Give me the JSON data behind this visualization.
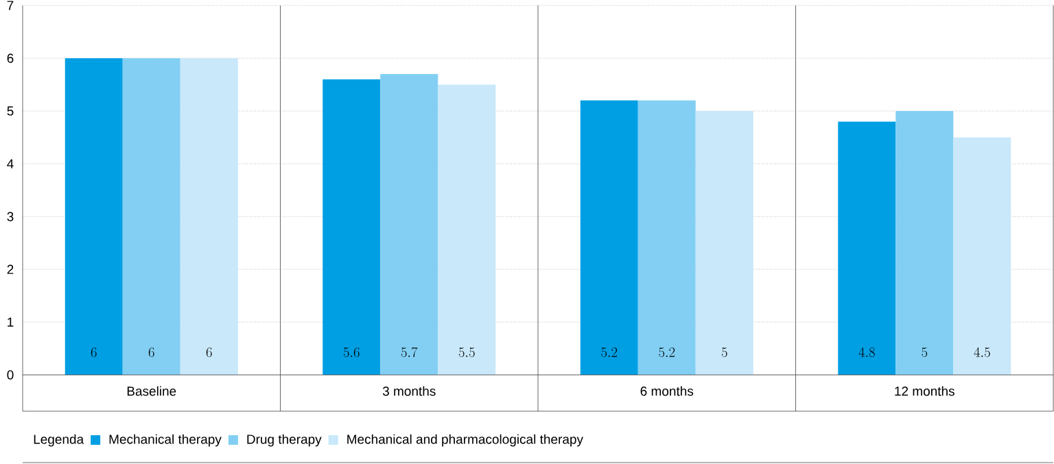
{
  "chart_data": {
    "type": "bar",
    "categories": [
      "Baseline",
      "3 months",
      "6 months",
      "12 months"
    ],
    "series": [
      {
        "name": "Mechanical therapy",
        "color": "#009fe3",
        "values": [
          6,
          5.6,
          5.2,
          4.8
        ]
      },
      {
        "name": "Drug therapy",
        "color": "#83cff4",
        "values": [
          6,
          5.7,
          5.2,
          5
        ]
      },
      {
        "name": "Mechanical and pharmacological therapy",
        "color": "#c9e8fa",
        "values": [
          6,
          5.5,
          5,
          4.5
        ]
      }
    ],
    "ylim": [
      0,
      7
    ],
    "yticks": [
      0,
      1,
      2,
      3,
      4,
      5,
      6,
      7
    ],
    "grid": "y",
    "legend": "bottom",
    "legend_title": "Legenda",
    "data_labels": true
  }
}
